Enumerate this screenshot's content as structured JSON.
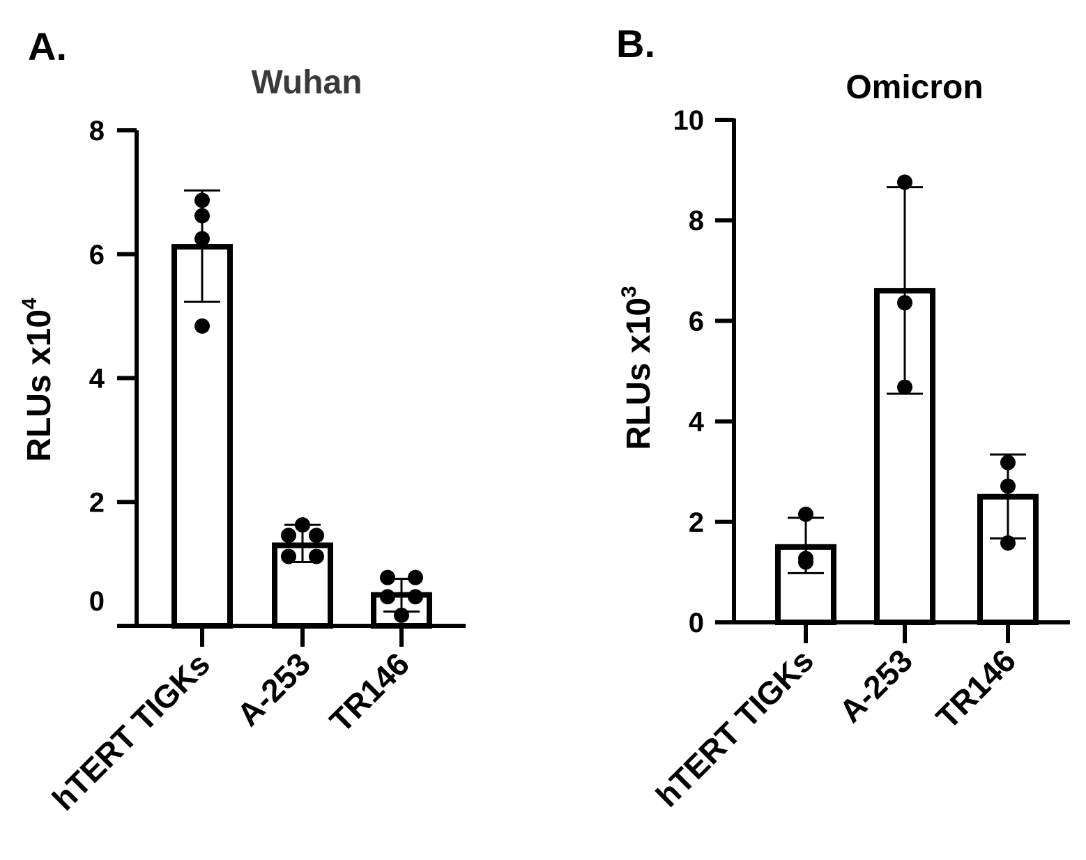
{
  "panels": [
    {
      "letter": "A.",
      "chart_data": {
        "type": "bar",
        "title": "Wuhan",
        "ylabel": "RLUs  x10",
        "ylabel_exponent": "4",
        "xlabel": "",
        "categories": [
          "hTERT TIGKs",
          "A-253",
          "TR146"
        ],
        "values": [
          6.12,
          1.3,
          0.5
        ],
        "error": [
          [
            5.23,
            7.03
          ],
          [
            1.03,
            1.63
          ],
          [
            0.23,
            0.76
          ]
        ],
        "points": [
          [
            6.87,
            6.62,
            6.25,
            4.84
          ],
          [
            1.63,
            1.46,
            1.46,
            1.12,
            1.12
          ],
          [
            0.78,
            0.78,
            0.47,
            0.47,
            0.17
          ]
        ],
        "yticks": [
          0,
          2,
          4,
          6,
          8
        ],
        "ylim": [
          0,
          8
        ]
      }
    },
    {
      "letter": "B.",
      "chart_data": {
        "type": "bar",
        "title": "Omicron",
        "ylabel": "RLUs  x10",
        "ylabel_exponent": "3",
        "xlabel": "",
        "categories": [
          "hTERT TIGKs",
          "A-253",
          "TR146"
        ],
        "values": [
          1.5,
          6.6,
          2.5
        ],
        "error": [
          [
            0.98,
            2.08
          ],
          [
            4.55,
            8.66
          ],
          [
            1.67,
            3.34
          ]
        ],
        "points": [
          [
            2.15,
            1.2,
            1.27
          ],
          [
            8.76,
            6.36,
            4.68
          ],
          [
            3.18,
            2.71,
            1.58
          ]
        ],
        "yticks": [
          0,
          2,
          4,
          6,
          8,
          10
        ],
        "ylim": [
          0,
          10
        ]
      }
    }
  ]
}
